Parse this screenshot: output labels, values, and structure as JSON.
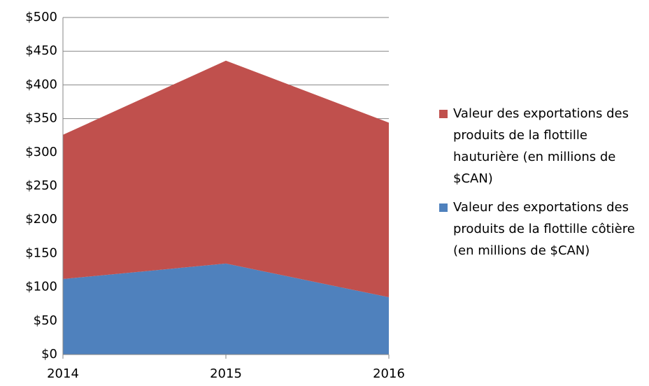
{
  "chart_data": {
    "type": "area",
    "stacked": true,
    "categories": [
      "2014",
      "2015",
      "2016"
    ],
    "series": [
      {
        "name": "Valeur des exportations des produits de la flottille côtière (en millions de $CAN)",
        "color": "#4f81bd",
        "values": [
          112,
          135,
          85
        ]
      },
      {
        "name": "Valeur des exportations des produits de la flottille hauturière (en millions de $CAN)",
        "color": "#c0504d",
        "values": [
          214,
          301,
          259
        ]
      }
    ],
    "ylim": [
      0,
      500
    ],
    "yticks": [
      {
        "value": 0,
        "label": "$0"
      },
      {
        "value": 50,
        "label": "$50"
      },
      {
        "value": 100,
        "label": "$100"
      },
      {
        "value": 150,
        "label": "$150"
      },
      {
        "value": 200,
        "label": "$200"
      },
      {
        "value": 250,
        "label": "$250"
      },
      {
        "value": 300,
        "label": "$300"
      },
      {
        "value": 350,
        "label": "$350"
      },
      {
        "value": 400,
        "label": "$400"
      },
      {
        "value": 450,
        "label": "$450"
      },
      {
        "value": 500,
        "label": "$500"
      }
    ],
    "grid": true,
    "legend": "right"
  }
}
